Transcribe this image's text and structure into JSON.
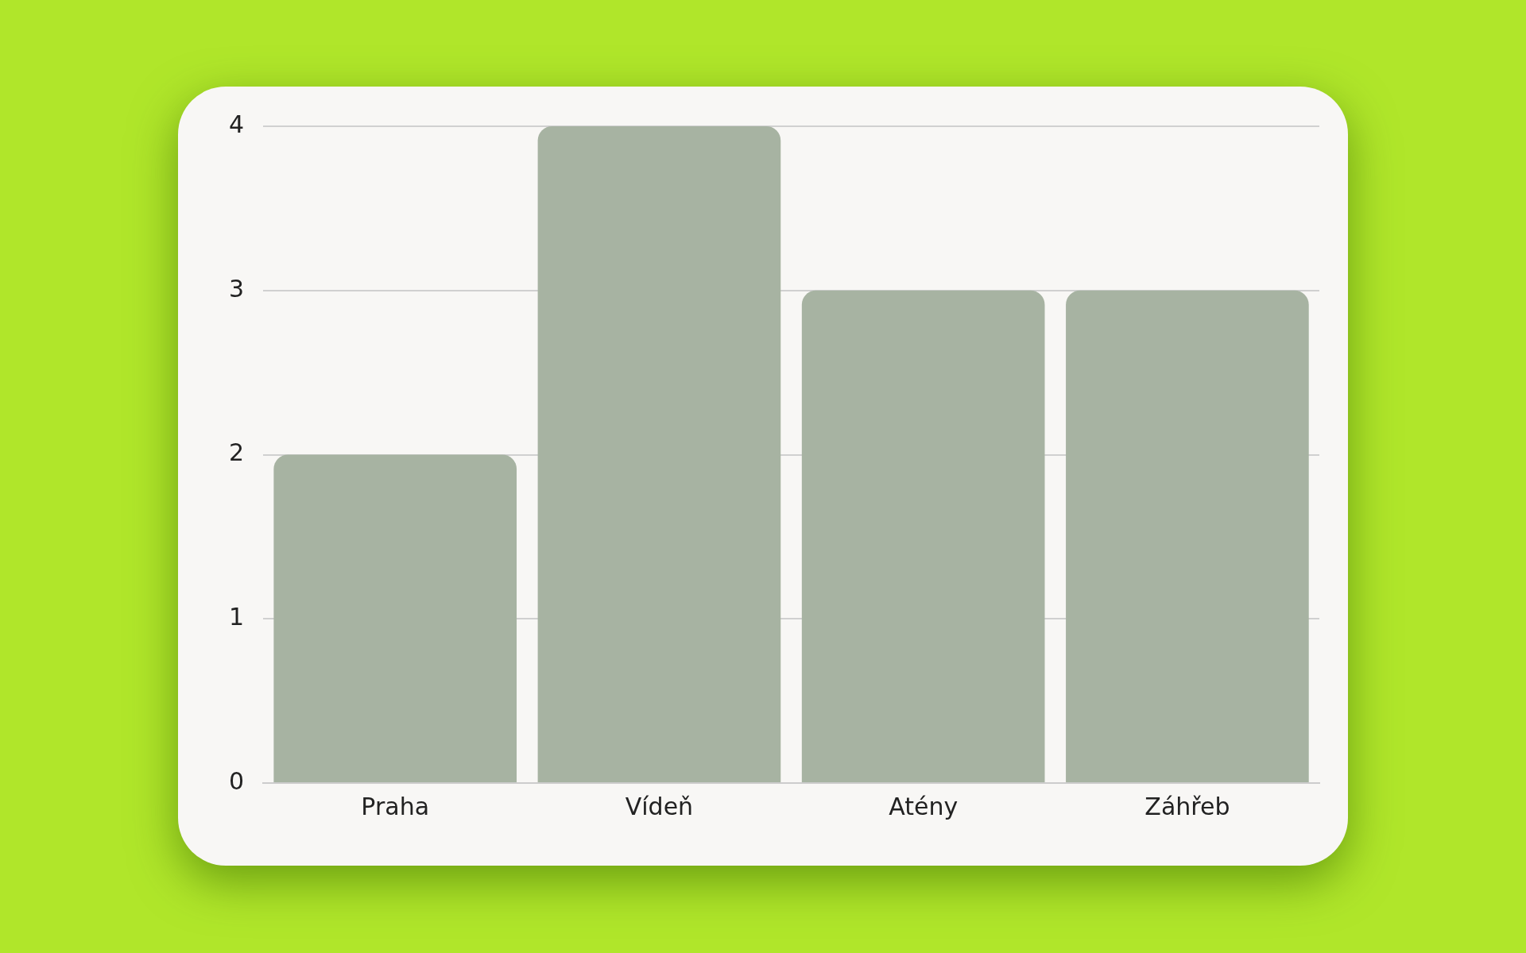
{
  "chart_data": {
    "type": "bar",
    "categories": [
      "Praha",
      "Vídeň",
      "Atény",
      "Záhřeb"
    ],
    "values": [
      2,
      4,
      3,
      3
    ],
    "color": "#a7b3a2",
    "ylim": [
      0,
      4
    ],
    "yticks": [
      0,
      1,
      2,
      3,
      4
    ],
    "grid": "y",
    "legend": false
  }
}
